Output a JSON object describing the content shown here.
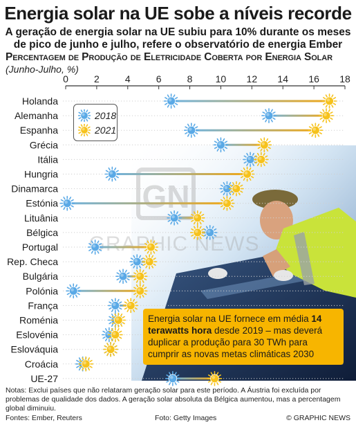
{
  "header": {
    "title": "Energia solar na UE sobe a níveis recorde",
    "subtitle_line1": "A geração de energia solar na UE subiu para 10% durante os meses",
    "subtitle_line2": "de pico de junho e julho, refere o observatório de energia Ember"
  },
  "chart_data": {
    "type": "dumbbell",
    "title": "Percentagem de Produção de Eletricidade Coberta por Energia Solar",
    "unit_label": "(Junho-Julho, %)",
    "xlim": [
      0,
      18
    ],
    "x_ticks": [
      "0",
      "2",
      "4",
      "6",
      "8",
      "10",
      "12",
      "14",
      "16",
      "18"
    ],
    "legend": {
      "position": "top-left",
      "items": [
        "2018",
        "2021"
      ]
    },
    "colors": {
      "y2018": "#5aa9e6",
      "y2021": "#f6c21c",
      "connector_from": "#6fb3e0",
      "connector_to": "#f0a818"
    },
    "countries": [
      "Holanda",
      "Alemanha",
      "Espanha",
      "Grécia",
      "Itália",
      "Hungria",
      "Dinamarca",
      "Estónia",
      "Lituânia",
      "Bélgica",
      "Portugal",
      "Rep. Checa",
      "Bulgária",
      "Polónia",
      "França",
      "Roménia",
      "Eslovénia",
      "Eslováquia",
      "Croácia",
      "UE-27"
    ],
    "series": [
      {
        "name": "2018",
        "values": [
          6.8,
          13.1,
          8.1,
          10.0,
          11.9,
          3.0,
          10.4,
          0.1,
          7.0,
          9.3,
          1.9,
          4.6,
          3.7,
          0.5,
          3.2,
          3.2,
          2.8,
          2.9,
          1.1,
          6.9
        ]
      },
      {
        "name": "2021",
        "values": [
          17.0,
          16.8,
          16.1,
          12.8,
          12.6,
          11.7,
          11.0,
          10.4,
          8.5,
          8.5,
          5.5,
          5.4,
          4.8,
          4.8,
          4.2,
          3.4,
          3.2,
          2.9,
          1.3,
          9.6
        ]
      }
    ]
  },
  "callout": {
    "text_before": "Energia solar na UE fornece em média ",
    "text_bold": "14 terawatts hora",
    "text_after": " desde 2019 – mas deverá duplicar a produção para 30 TWh para cumprir as novas metas climáticas 2030"
  },
  "footer": {
    "notes": "Notas: Exclui países que não relataram geração solar para este período. A Áustria foi excluída por problemas de qualidade dos dados. A geração solar absoluta da Bélgica aumentou, mas a percentagem global diminuiu.",
    "sources": "Fontes: Ember, Reuters",
    "photo_credit": "Foto: Getty Images",
    "copyright": "© GRAPHIC NEWS"
  },
  "watermark": "GRAPHIC NEWS"
}
